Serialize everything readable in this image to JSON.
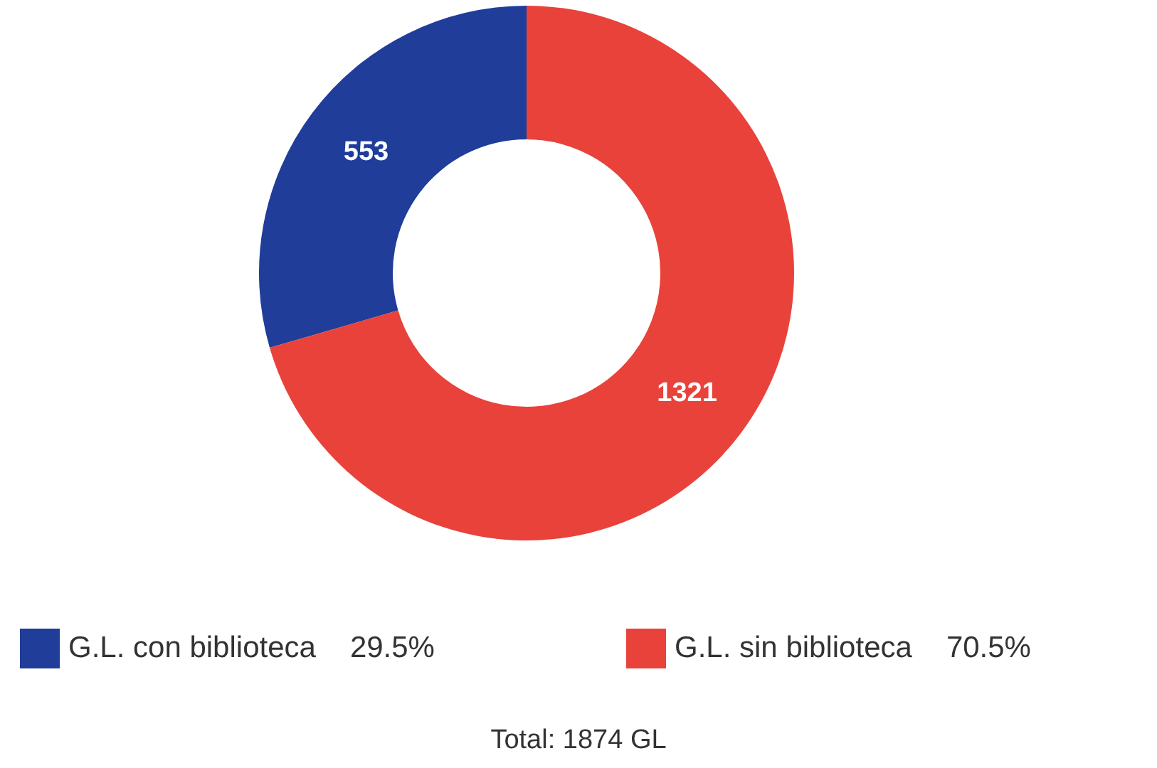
{
  "chart_data": {
    "type": "donut",
    "categories": [
      "G.L. con biblioteca",
      "G.L. sin biblioteca"
    ],
    "values": [
      553,
      1321
    ],
    "colors": [
      "#1f3d99",
      "#e8423a"
    ],
    "data_labels": true,
    "legend": "bottom",
    "annotations": [
      {
        "text": "29.5%",
        "x": "G.L. con biblioteca"
      },
      {
        "text": "70.5%",
        "x": "G.L. sin biblioteca"
      },
      "Total: 1874 GL"
    ]
  }
}
